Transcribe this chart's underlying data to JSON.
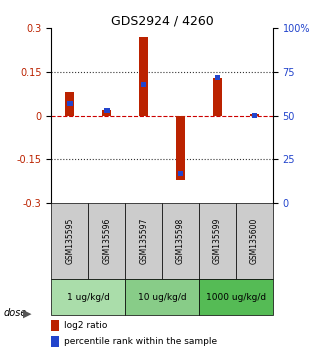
{
  "title": "GDS2924 / 4260",
  "samples": [
    "GSM135595",
    "GSM135596",
    "GSM135597",
    "GSM135598",
    "GSM135599",
    "GSM135600"
  ],
  "log2_ratio": [
    0.08,
    0.02,
    0.27,
    -0.22,
    0.13,
    0.005
  ],
  "percentile_rank": [
    57,
    53,
    68,
    17,
    72,
    50
  ],
  "dose_groups": [
    {
      "label": "1 ug/kg/d",
      "samples": [
        0,
        1
      ],
      "color": "#aaddaa"
    },
    {
      "label": "10 ug/kg/d",
      "samples": [
        2,
        3
      ],
      "color": "#88cc88"
    },
    {
      "label": "1000 ug/kg/d",
      "samples": [
        4,
        5
      ],
      "color": "#55bb55"
    }
  ],
  "ylim_left": [
    -0.3,
    0.3
  ],
  "ylim_right": [
    0,
    100
  ],
  "yticks_left": [
    -0.3,
    -0.15,
    0,
    0.15,
    0.3
  ],
  "yticks_right": [
    0,
    25,
    50,
    75,
    100
  ],
  "ytick_labels_right": [
    "0",
    "25",
    "50",
    "75",
    "100%"
  ],
  "bar_color_red": "#bb2200",
  "bar_color_blue": "#2244cc",
  "zero_line_color": "#cc0000",
  "dotted_color": "#333333",
  "sample_box_color": "#cccccc",
  "legend_red": "log2 ratio",
  "legend_blue": "percentile rank within the sample",
  "bar_width": 0.25,
  "blue_bar_width": 0.15
}
